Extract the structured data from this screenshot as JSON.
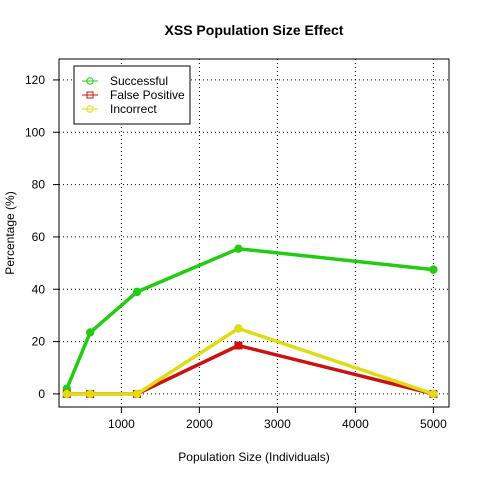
{
  "chart_data": {
    "type": "line",
    "title": "XSS Population Size Effect",
    "xlabel": "Population Size (Individuals)",
    "ylabel": "Percentage (%)",
    "xlim": [
      200,
      5200
    ],
    "ylim": [
      -5,
      128
    ],
    "xticks": [
      1000,
      2000,
      3000,
      4000,
      5000
    ],
    "yticks": [
      0,
      20,
      40,
      60,
      80,
      100,
      120
    ],
    "grid": true,
    "legend_position": "top-left",
    "x": [
      300,
      600,
      1200,
      2500,
      5000
    ],
    "series": [
      {
        "name": "Successful",
        "color": "#22cc11",
        "marker": "circle",
        "values": [
          2,
          23.5,
          39,
          55.5,
          47.5
        ]
      },
      {
        "name": "False Positive",
        "color": "#cc1111",
        "marker": "square",
        "values": [
          0,
          0,
          0,
          18.5,
          0
        ]
      },
      {
        "name": "Incorrect",
        "color": "#dddd11",
        "marker": "circle",
        "values": [
          0,
          0,
          0,
          25,
          0
        ]
      }
    ]
  }
}
